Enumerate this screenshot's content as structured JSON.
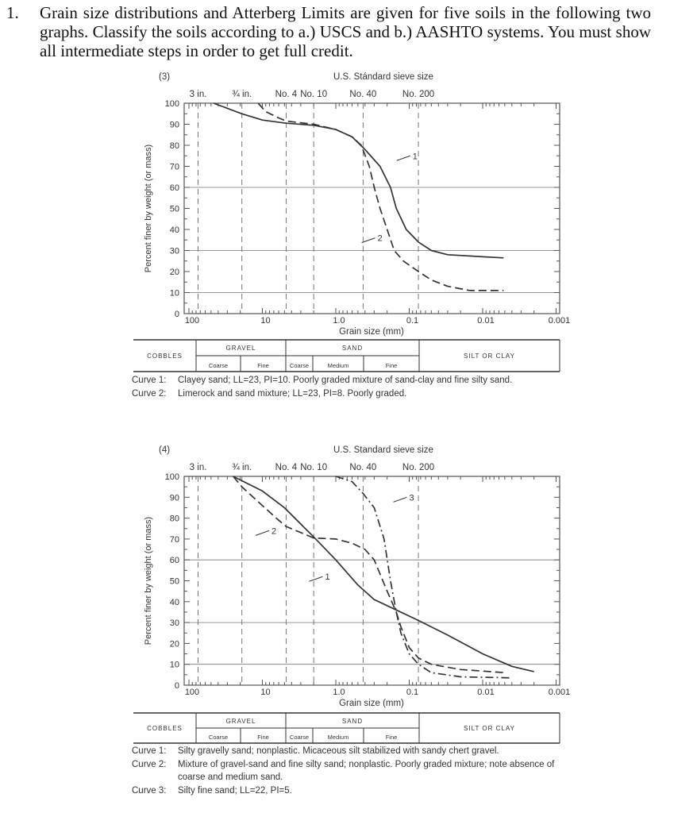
{
  "question": {
    "number": "1.",
    "text": "Grain size distributions and Atterberg Limits are given for five soils in the following two graphs. Classify the soils according to a.) USCS and b.) AASHTO systems. You must show all intermediate steps in order to get full credit."
  },
  "figures": [
    {
      "panel_label": "(3)",
      "sieve_title": "U.S. Stándard sieve size",
      "sieve_labels": [
        {
          "label": "3 in.",
          "mm": 75
        },
        {
          "label": "¾ in.",
          "mm": 19
        },
        {
          "label": "No. 4",
          "mm": 4.75
        },
        {
          "label": "No. 10",
          "mm": 2.0
        },
        {
          "label": "No. 40",
          "mm": 0.425
        },
        {
          "label": "No. 200",
          "mm": 0.075
        }
      ],
      "soil_table": {
        "cobbles": "COBBLES",
        "gravel": "GRAVEL",
        "sand": "SAND",
        "silt_clay": "SILT OR CLAY",
        "subs": [
          "Coarse",
          "Fine",
          "Coarse",
          "Medium",
          "Fine"
        ]
      },
      "captions": [
        {
          "label": "Curve 1:",
          "text": "Clayey sand; LL=23, PI=10.  Poorly graded mixture of sand-clay and fine silty sand."
        },
        {
          "label": "Curve 2:",
          "text": "Limerock and sand mixture; LL=23, PI=8.  Poorly graded."
        }
      ]
    },
    {
      "panel_label": "(4)",
      "sieve_title": "U.S. Standard sieve size",
      "sieve_labels": [
        {
          "label": "3 in.",
          "mm": 75
        },
        {
          "label": "¾ in.",
          "mm": 19
        },
        {
          "label": "No. 4",
          "mm": 4.75
        },
        {
          "label": "No. 10",
          "mm": 2.0
        },
        {
          "label": "No. 40",
          "mm": 0.425
        },
        {
          "label": "No. 200",
          "mm": 0.075
        }
      ],
      "soil_table": {
        "cobbles": "COBBLES",
        "gravel": "GRAVEL",
        "sand": "SAND",
        "silt_clay": "SILT OR CLAY",
        "subs": [
          "Coarse",
          "Fine",
          "Coarse",
          "Medium",
          "Fine"
        ]
      },
      "captions": [
        {
          "label": "Curve 1:",
          "text": "Silty gravelly sand; nonplastic.  Micaceous silt stabilized with sandy chert gravel."
        },
        {
          "label": "Curve 2:",
          "text": "Mixture of gravel-sand and fine silty sand; nonplastic.  Poorly graded mixture; note absence of coarse and medium sand."
        },
        {
          "label": "Curve 3:",
          "text": "Silty fine sand; LL=22, PI=5."
        }
      ]
    }
  ],
  "chart_data": [
    {
      "type": "line",
      "xlabel": "Grain size (mm)",
      "ylabel": "Percent finer by weight (or mass)",
      "x_scale": "log",
      "x_reversed": true,
      "xlim": [
        115,
        0.001
      ],
      "ylim": [
        0,
        100
      ],
      "xticks": [
        100,
        10,
        1.0,
        0.1,
        0.01,
        0.001
      ],
      "xtick_labels": [
        "100",
        "10",
        "1.0",
        "0.1",
        "0.01",
        "0.001"
      ],
      "yticks": [
        0,
        10,
        20,
        30,
        40,
        50,
        60,
        70,
        80,
        90,
        100
      ],
      "ytick_labels": [
        "0",
        "10",
        "20",
        "30",
        "40",
        "50",
        "60",
        "70",
        "80",
        "90",
        "100"
      ],
      "grid_y": [
        10,
        30,
        60
      ],
      "series": [
        {
          "name": "1",
          "style": "solid",
          "label_at": [
            0.09,
            75
          ],
          "points": [
            [
              46,
              100
            ],
            [
              19,
              95
            ],
            [
              10,
              92
            ],
            [
              4.75,
              90.5
            ],
            [
              2,
              89.5
            ],
            [
              1,
              87.5
            ],
            [
              0.6,
              84
            ],
            [
              0.4,
              78
            ],
            [
              0.25,
              70
            ],
            [
              0.18,
              60
            ],
            [
              0.15,
              50
            ],
            [
              0.11,
              40
            ],
            [
              0.075,
              34
            ],
            [
              0.05,
              30
            ],
            [
              0.03,
              28
            ],
            [
              0.01,
              27
            ],
            [
              0.0052,
              26.5
            ]
          ]
        },
        {
          "name": "2",
          "style": "dashed",
          "label_at": [
            0.27,
            36
          ],
          "points": [
            [
              11.4,
              100
            ],
            [
              9,
              96
            ],
            [
              6,
              93
            ],
            [
              4.75,
              91.5
            ],
            [
              2,
              90
            ],
            [
              1,
              87.5
            ],
            [
              0.6,
              84
            ],
            [
              0.45,
              80
            ],
            [
              0.35,
              70
            ],
            [
              0.3,
              60
            ],
            [
              0.25,
              50
            ],
            [
              0.2,
              40
            ],
            [
              0.16,
              30
            ],
            [
              0.12,
              25
            ],
            [
              0.075,
              20
            ],
            [
              0.05,
              16
            ],
            [
              0.03,
              13
            ],
            [
              0.015,
              11
            ],
            [
              0.0052,
              11
            ]
          ]
        }
      ]
    },
    {
      "type": "line",
      "xlabel": "Grain size (mm)",
      "ylabel": "Percent finer by weight (or mass)",
      "x_scale": "log",
      "x_reversed": true,
      "xlim": [
        115,
        0.001
      ],
      "ylim": [
        0,
        100
      ],
      "xticks": [
        100,
        10,
        1.0,
        0.1,
        0.01,
        0.001
      ],
      "xtick_labels": [
        "100",
        "10",
        "1.0",
        "0.1",
        "0.01",
        "0.001"
      ],
      "yticks": [
        0,
        10,
        20,
        30,
        40,
        50,
        60,
        70,
        80,
        90,
        100
      ],
      "ytick_labels": [
        "0",
        "10",
        "20",
        "30",
        "40",
        "50",
        "60",
        "70",
        "80",
        "90",
        "100"
      ],
      "grid_y": [
        10,
        30,
        60
      ],
      "series": [
        {
          "name": "1",
          "style": "solid",
          "label_at": [
            1.4,
            52
          ],
          "points": [
            [
              25,
              100
            ],
            [
              10,
              93
            ],
            [
              5,
              85
            ],
            [
              2,
              71
            ],
            [
              1,
              60
            ],
            [
              0.5,
              48
            ],
            [
              0.3,
              41
            ],
            [
              0.15,
              36
            ],
            [
              0.075,
              31
            ],
            [
              0.03,
              24
            ],
            [
              0.01,
              15
            ],
            [
              0.004,
              9
            ],
            [
              0.002,
              6.5
            ]
          ]
        },
        {
          "name": "2",
          "style": "dashed",
          "label_at": [
            7.5,
            74
          ],
          "points": [
            [
              25,
              100
            ],
            [
              19,
              95
            ],
            [
              10,
              86
            ],
            [
              6,
              79
            ],
            [
              4.75,
              76
            ],
            [
              2,
              70.5
            ],
            [
              1,
              70
            ],
            [
              0.6,
              68
            ],
            [
              0.4,
              65
            ],
            [
              0.3,
              60
            ],
            [
              0.2,
              45
            ],
            [
              0.15,
              35
            ],
            [
              0.13,
              28
            ],
            [
              0.1,
              18
            ],
            [
              0.075,
              13
            ],
            [
              0.05,
              10
            ],
            [
              0.02,
              7.5
            ],
            [
              0.005,
              6
            ]
          ]
        },
        {
          "name": "3",
          "style": "dashdot",
          "label_at": [
            0.1,
            90
          ],
          "points": [
            [
              1,
              100
            ],
            [
              0.6,
              97.5
            ],
            [
              0.43,
              92
            ],
            [
              0.3,
              85
            ],
            [
              0.22,
              70
            ],
            [
              0.18,
              50
            ],
            [
              0.15,
              35
            ],
            [
              0.13,
              25
            ],
            [
              0.1,
              15
            ],
            [
              0.075,
              10
            ],
            [
              0.05,
              6
            ],
            [
              0.02,
              4
            ],
            [
              0.004,
              3.5
            ]
          ]
        }
      ]
    }
  ]
}
